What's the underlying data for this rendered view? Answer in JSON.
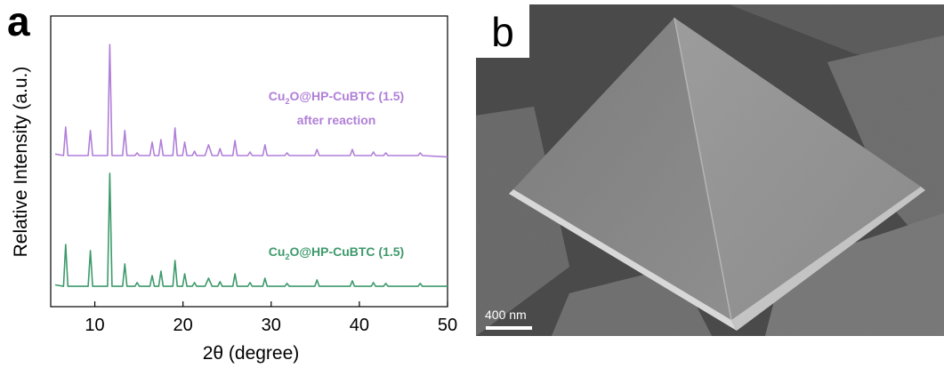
{
  "panel_labels": {
    "a": "a",
    "b": "b"
  },
  "chart_data": {
    "type": "line",
    "xlabel": "2θ (degree)",
    "ylabel": "Relative Intensity (a.u.)",
    "xlim": [
      5,
      50
    ],
    "ylim": [
      0,
      100
    ],
    "xticks": [
      10,
      20,
      30,
      40,
      50
    ],
    "x": [
      5.5,
      6.45,
      6.7,
      6.95,
      9.25,
      9.5,
      9.75,
      11.45,
      11.7,
      11.95,
      13.15,
      13.4,
      13.65,
      14.55,
      14.8,
      15.05,
      16.25,
      16.5,
      16.75,
      17.25,
      17.5,
      17.75,
      18.85,
      19.1,
      19.35,
      19.95,
      20.2,
      20.45,
      21.05,
      21.3,
      21.55,
      22.5,
      22.9,
      23.3,
      23.95,
      24.2,
      24.45,
      25.65,
      25.9,
      26.15,
      27.35,
      27.6,
      27.85,
      29.05,
      29.3,
      29.55,
      31.55,
      31.8,
      32.05,
      34.95,
      35.2,
      35.45,
      38.95,
      39.2,
      39.45,
      41.35,
      41.6,
      41.85,
      42.75,
      43.0,
      43.25,
      46.65,
      46.9,
      47.15,
      50
    ],
    "series": [
      {
        "name_parts": {
          "prefix": "Cu",
          "sub": "2",
          "suffix": "O@HP-CuBTC (1.5)"
        },
        "color": "#3d9a6b",
        "values": [
          7.5,
          7,
          21.4,
          7,
          7,
          19.3,
          7,
          7,
          45.9,
          7,
          7,
          14.7,
          7,
          7,
          8.3,
          7,
          7,
          10.7,
          7,
          7,
          12.2,
          7,
          7,
          15.9,
          7,
          7,
          11.3,
          7,
          7,
          8.3,
          7,
          7,
          9.8,
          7,
          7,
          8.6,
          7,
          7,
          11.3,
          7,
          7,
          8.3,
          7,
          7,
          9.8,
          7,
          7,
          8.0,
          7,
          7,
          9.2,
          7,
          7,
          8.9,
          7,
          7,
          8.3,
          7,
          7,
          8.0,
          7,
          7,
          8.0,
          7,
          7
        ]
      },
      {
        "name_parts": {
          "prefix": "Cu",
          "sub": "2",
          "suffix": "O@HP-CuBTC (1.5)",
          "line2": "after reaction"
        },
        "color": "#b07fd8",
        "values": [
          52.5,
          52,
          61.8,
          52,
          52,
          60.6,
          52,
          52,
          90.2,
          52,
          52,
          60.6,
          52,
          52,
          52.9,
          52,
          52,
          56.6,
          52,
          52,
          57.5,
          52,
          52,
          61.5,
          52,
          52,
          56.6,
          52,
          52,
          53.5,
          52,
          52,
          55.7,
          52,
          52,
          54.4,
          52,
          52,
          57.2,
          52,
          52,
          53.2,
          52,
          52,
          55.7,
          52,
          52,
          52.9,
          52,
          52,
          54.1,
          52,
          52,
          54.1,
          52,
          52,
          53.2,
          52,
          52,
          52.9,
          52,
          52,
          52.9,
          52,
          51.5
        ]
      }
    ]
  },
  "image": {
    "scale_bar": "400 nm"
  }
}
